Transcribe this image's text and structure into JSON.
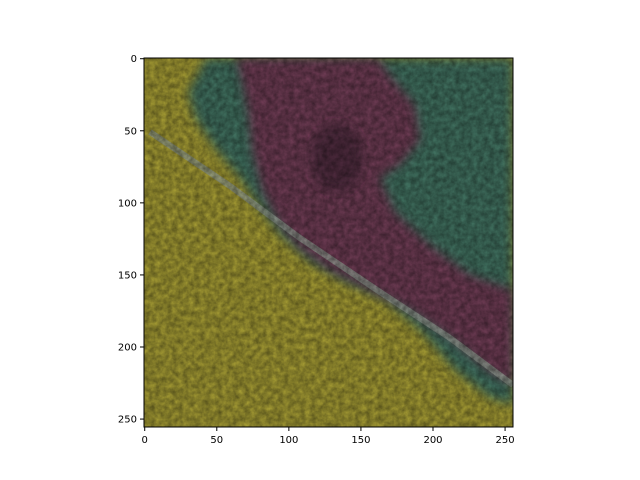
{
  "figure": {
    "x_ticks": [
      "0",
      "50",
      "100",
      "150",
      "200",
      "250"
    ],
    "y_ticks": [
      "0",
      "50",
      "100",
      "150",
      "200",
      "250"
    ],
    "x_tick_values": [
      0,
      50,
      100,
      150,
      200,
      250
    ],
    "y_tick_values": [
      0,
      50,
      100,
      150,
      200,
      250
    ],
    "xlim": [
      -0.5,
      255.5
    ],
    "ylim": [
      255.5,
      -0.5
    ]
  },
  "colors": {
    "yellow_field": "#a39a33",
    "yellow_dark": "#8a8a2c",
    "teal_forest": "#3f6f5f",
    "teal_dark": "#2f5a4c",
    "maroon_region": "#6d3a52",
    "maroon_dark": "#4e2a3e",
    "road": "#8f9a8f",
    "axis": "#000000"
  }
}
